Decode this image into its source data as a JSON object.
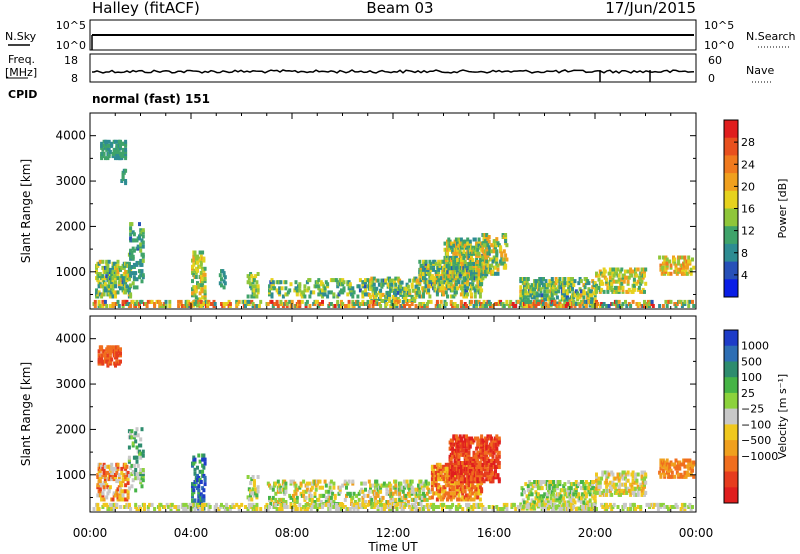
{
  "header": {
    "station": "Halley (fitACF)",
    "beam": "Beam 03",
    "date": "17/Jun/2015"
  },
  "params": {
    "nsky_label": "N.Sky",
    "nsearch_label": "N.Search",
    "freq_label_1": "Freq.",
    "freq_label_2": "[MHz]",
    "nave_label": "Nave",
    "cpid_label": "CPID",
    "cpid_value": "normal (fast) 151",
    "nsky_ticks": [
      "10^5",
      "10^0"
    ],
    "nsearch_ticks": [
      "10^5",
      "10^0"
    ],
    "freq_ticks": [
      "18",
      "8"
    ],
    "nave_ticks": [
      "60",
      "0"
    ]
  },
  "chart_data": [
    {
      "type": "heatmap",
      "panel": "power",
      "ylabel": "Slant Range [km]",
      "ylim": [
        180,
        4500
      ],
      "xlim": [
        0,
        24
      ],
      "yticks": [
        1000,
        2000,
        3000,
        4000
      ],
      "colorbar": {
        "label": "Power [dB]",
        "range": [
          0,
          32
        ],
        "ticks": [
          "4",
          "8",
          "12",
          "16",
          "20",
          "24",
          "28"
        ],
        "colors": [
          "#0a1ee6",
          "#2750b8",
          "#2e8c92",
          "#3fa36a",
          "#8fc63a",
          "#e6d21e",
          "#f0a01e",
          "#f07a1e",
          "#e8501e",
          "#e01e1e"
        ]
      },
      "blobs": [
        {
          "t": [
            0.4,
            1.4
          ],
          "r": [
            3550,
            3950
          ],
          "p": [
            8,
            12
          ],
          "d": 0.45
        },
        {
          "t": [
            1.2,
            1.4
          ],
          "r": [
            3000,
            3300
          ],
          "p": [
            8,
            12
          ],
          "d": 0.4
        },
        {
          "t": [
            0.2,
            1.6
          ],
          "r": [
            500,
            1300
          ],
          "p": [
            6,
            20
          ],
          "d": 0.35
        },
        {
          "t": [
            1.5,
            2.1
          ],
          "r": [
            700,
            2100
          ],
          "p": [
            6,
            14
          ],
          "d": 0.18
        },
        {
          "t": [
            4.0,
            4.5
          ],
          "r": [
            300,
            1500
          ],
          "p": [
            10,
            22
          ],
          "d": 0.3
        },
        {
          "t": [
            5.1,
            5.3
          ],
          "r": [
            700,
            1100
          ],
          "p": [
            8,
            12
          ],
          "d": 0.3
        },
        {
          "t": [
            6.2,
            6.6
          ],
          "r": [
            500,
            1000
          ],
          "p": [
            8,
            18
          ],
          "d": 0.3
        },
        {
          "t": [
            7.0,
            11.0
          ],
          "r": [
            500,
            900
          ],
          "p": [
            6,
            18
          ],
          "d": 0.2
        },
        {
          "t": [
            11.0,
            13.0
          ],
          "r": [
            400,
            900
          ],
          "p": [
            6,
            20
          ],
          "d": 0.3
        },
        {
          "t": [
            13.0,
            15.5
          ],
          "r": [
            500,
            1300
          ],
          "p": [
            6,
            22
          ],
          "d": 0.35
        },
        {
          "t": [
            14.0,
            15.8
          ],
          "r": [
            900,
            1800
          ],
          "p": [
            6,
            22
          ],
          "d": 0.4
        },
        {
          "t": [
            15.5,
            16.5
          ],
          "r": [
            1000,
            1900
          ],
          "p": [
            8,
            22
          ],
          "d": 0.25
        },
        {
          "t": [
            17.0,
            20.0
          ],
          "r": [
            300,
            900
          ],
          "p": [
            6,
            20
          ],
          "d": 0.35
        },
        {
          "t": [
            20.0,
            22.0
          ],
          "r": [
            600,
            1100
          ],
          "p": [
            10,
            22
          ],
          "d": 0.3
        },
        {
          "t": [
            22.5,
            24.0
          ],
          "r": [
            1000,
            1400
          ],
          "p": [
            14,
            24
          ],
          "d": 0.3
        },
        {
          "t": [
            0.0,
            24.0
          ],
          "r": [
            200,
            400
          ],
          "p": [
            6,
            30
          ],
          "d": 0.3
        }
      ]
    },
    {
      "type": "heatmap",
      "panel": "velocity",
      "ylabel": "Slant Range [km]",
      "xlabel": "Time UT",
      "ylim": [
        180,
        4500
      ],
      "xlim": [
        0,
        24
      ],
      "yticks": [
        1000,
        2000,
        3000,
        4000
      ],
      "xticks": [
        "00:00",
        "04:00",
        "08:00",
        "12:00",
        "16:00",
        "20:00",
        "00:00"
      ],
      "colorbar": {
        "label": "Velocity [m s⁻¹]",
        "ticks": [
          "1000",
          "500",
          "100",
          "25",
          "−25",
          "−100",
          "−500",
          "−1000"
        ],
        "colors": [
          "#1e3cc8",
          "#2e6eb4",
          "#2e8c6e",
          "#46b446",
          "#8cd23c",
          "#c8c8c8",
          "#f0c81e",
          "#f0a01e",
          "#f06e1e",
          "#e63c1e",
          "#e01e1e"
        ]
      },
      "blobs": [
        {
          "t": [
            0.3,
            1.2
          ],
          "r": [
            3450,
            3900
          ],
          "c": [
            8,
            9
          ],
          "d": 0.45
        },
        {
          "t": [
            0.2,
            1.5
          ],
          "r": [
            500,
            1300
          ],
          "c": [
            5,
            9
          ],
          "d": 0.3
        },
        {
          "t": [
            1.5,
            2.1
          ],
          "r": [
            700,
            2100
          ],
          "c": [
            2,
            5
          ],
          "d": 0.18
        },
        {
          "t": [
            4.0,
            4.5
          ],
          "r": [
            300,
            1500
          ],
          "c": [
            0,
            3
          ],
          "d": 0.3
        },
        {
          "t": [
            6.2,
            6.6
          ],
          "r": [
            500,
            1000
          ],
          "c": [
            3,
            6
          ],
          "d": 0.25
        },
        {
          "t": [
            7.0,
            11.0
          ],
          "r": [
            400,
            900
          ],
          "c": [
            3,
            7
          ],
          "d": 0.18
        },
        {
          "t": [
            11.0,
            13.5
          ],
          "r": [
            400,
            900
          ],
          "c": [
            3,
            7
          ],
          "d": 0.3
        },
        {
          "t": [
            13.5,
            15.5
          ],
          "r": [
            500,
            1300
          ],
          "c": [
            6,
            9
          ],
          "d": 0.35
        },
        {
          "t": [
            14.2,
            16.2
          ],
          "r": [
            900,
            1900
          ],
          "c": [
            8,
            10
          ],
          "d": 0.4
        },
        {
          "t": [
            17.0,
            20.0
          ],
          "r": [
            300,
            900
          ],
          "c": [
            3,
            6
          ],
          "d": 0.35
        },
        {
          "t": [
            20.0,
            22.0
          ],
          "r": [
            600,
            1100
          ],
          "c": [
            4,
            7
          ],
          "d": 0.3
        },
        {
          "t": [
            22.5,
            24.0
          ],
          "r": [
            1000,
            1400
          ],
          "c": [
            7,
            8
          ],
          "d": 0.35
        },
        {
          "t": [
            0.0,
            24.0
          ],
          "r": [
            200,
            400
          ],
          "c": [
            4,
            6
          ],
          "d": 0.3
        }
      ]
    }
  ]
}
